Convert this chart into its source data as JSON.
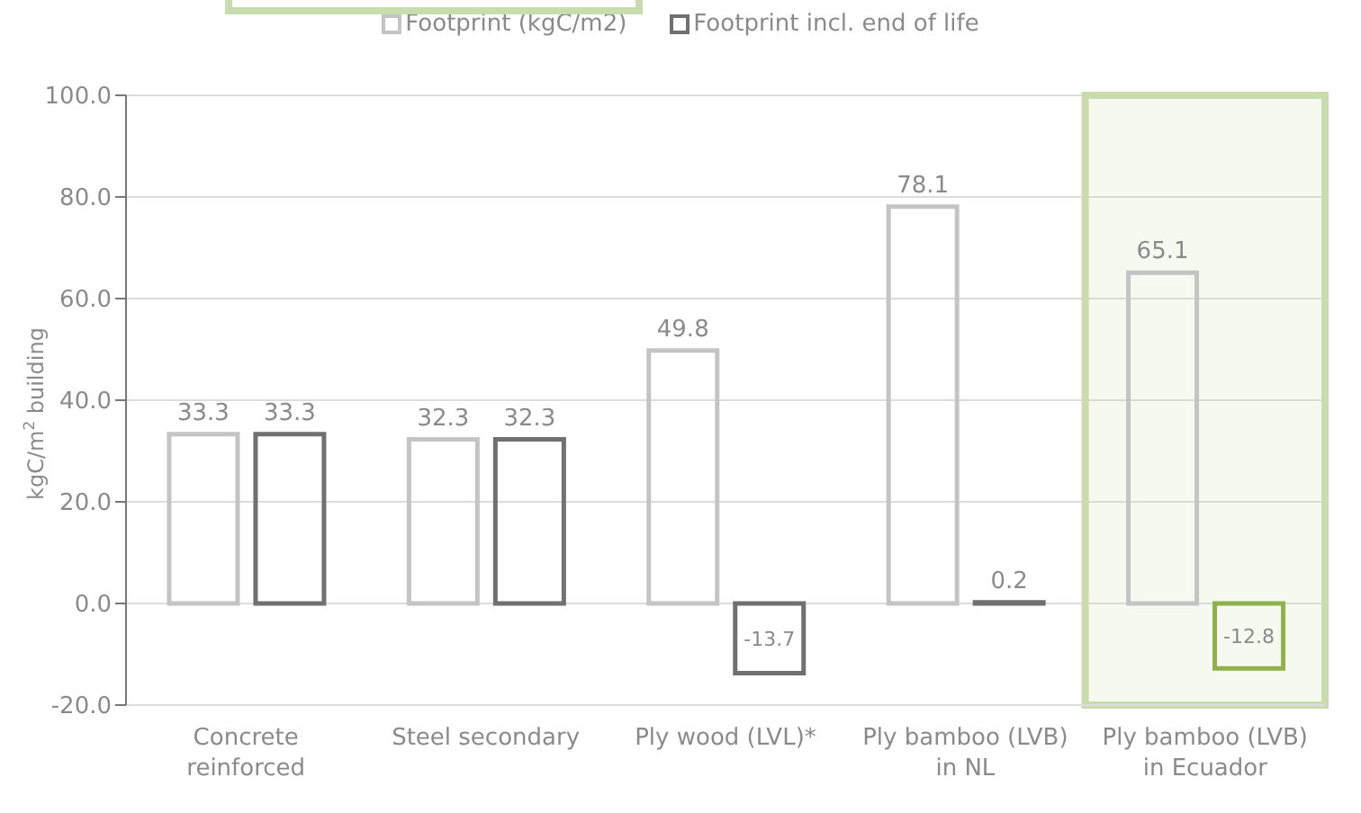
{
  "chart_data": {
    "type": "bar",
    "categories": [
      "Concrete reinforced",
      "Steel secondary",
      "Ply wood (LVL)*",
      "Ply bamboo (LVB) in NL",
      "Ply bamboo (LVB) in Ecuador"
    ],
    "series": [
      {
        "name": "Footprint (kgC/m2)",
        "color": "#c4c4c4",
        "values": [
          33.3,
          32.3,
          49.8,
          78.1,
          65.1
        ]
      },
      {
        "name": "Footprint incl. end of life",
        "color": "#707070",
        "colors": [
          "#707070",
          "#707070",
          "#707070",
          "#707070",
          "#8fb04a"
        ],
        "values": [
          33.3,
          32.3,
          -13.7,
          0.2,
          -12.8
        ]
      }
    ],
    "ylabel": "kgC/m$^{2}$ building",
    "ylim": [
      -20,
      100
    ],
    "yticks": [
      {
        "value": -20,
        "label": "-20.0"
      },
      {
        "value": 0,
        "label": "0.0"
      },
      {
        "value": 20,
        "label": "20.0"
      },
      {
        "value": 40,
        "label": "40.0"
      },
      {
        "value": 60,
        "label": "60.0"
      },
      {
        "value": 80,
        "label": "80.0"
      },
      {
        "value": 100,
        "label": "100.0"
      }
    ],
    "bands": [
      {
        "axis": "x",
        "from": "Ply bamboo (LVB) in Ecuador",
        "to": "Ply bamboo (LVB) in Ecuador",
        "color": "#c9dcae"
      }
    ],
    "grid": "y",
    "legend": "top",
    "data_labels": true
  }
}
